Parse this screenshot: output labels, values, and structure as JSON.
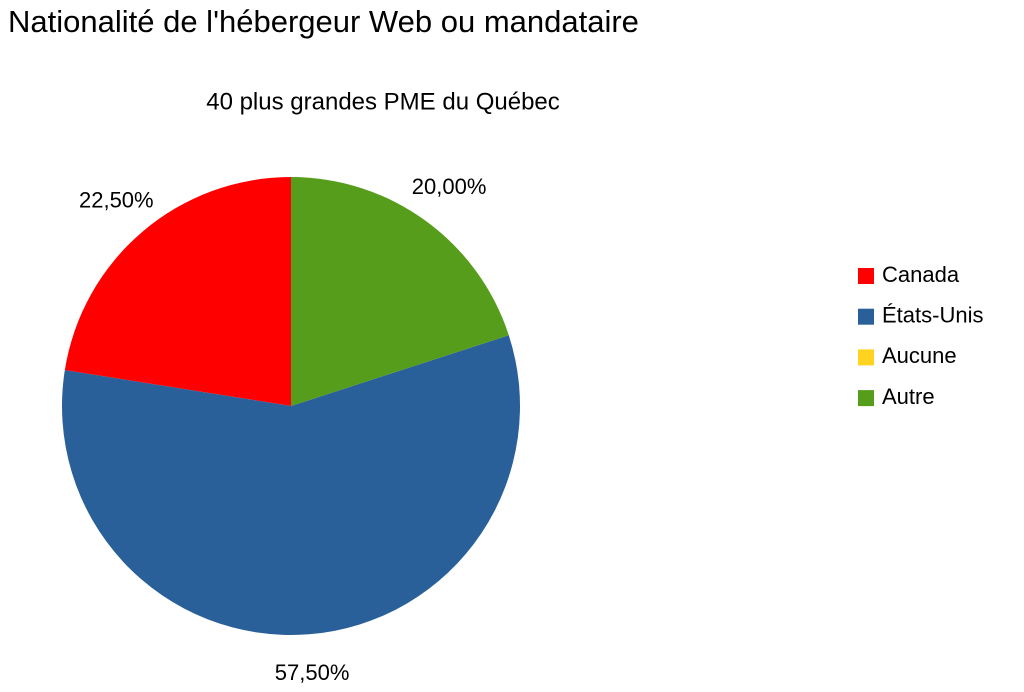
{
  "chart_data": {
    "type": "pie",
    "title": "Nationalité de l'hébergeur Web ou mandataire",
    "subtitle": "40 plus grandes PME du Québec",
    "categories": [
      "Canada",
      "États-Unis",
      "Aucune",
      "Autre"
    ],
    "values": [
      22.5,
      57.5,
      0,
      20
    ],
    "value_labels": [
      "22,50%",
      "57,50%",
      null,
      "20,00%"
    ],
    "colors": [
      "#ff0000",
      "#2a6099",
      "#ffd320",
      "#579d1c"
    ],
    "legend": "right"
  }
}
